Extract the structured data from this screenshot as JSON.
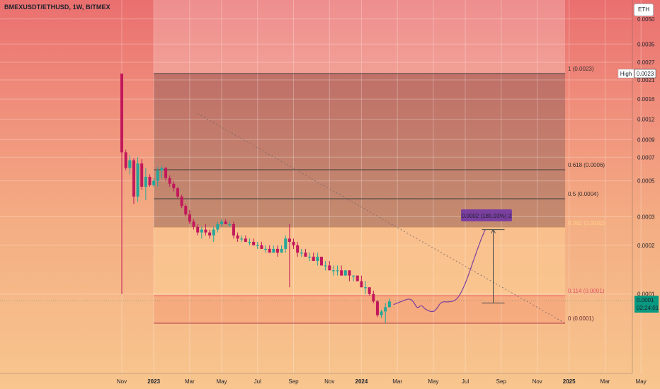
{
  "header": {
    "symbol_title": "BMEXUSDT/ETHUSD, 1W, BITMEX",
    "currency_button": "ETH"
  },
  "colors": {
    "candle_up": "#26a69a",
    "candle_down": "#c2185b",
    "fib_line": "#3d3d3d",
    "fib_zone_upper": "#6b4a4a",
    "fib_zone_lower": "#ffd59a",
    "projection_stroke": "#7b3fa0",
    "measure_label_bg": "#7b3fa0",
    "price_badge_bg": "#089981"
  },
  "chart_data": {
    "type": "candlestick",
    "symbol": "BMEXUSDT/ETHUSD",
    "interval": "1W",
    "exchange": "BITMEX",
    "x_axis": {
      "ticks": [
        "Nov",
        "2023",
        "Mar",
        "May",
        "Jul",
        "Sep",
        "Nov",
        "2024",
        "Mar",
        "May",
        "Jul",
        "Sep",
        "Nov",
        "2025",
        "Mar",
        "May"
      ],
      "bold_ticks": [
        "2023",
        "2024",
        "2025"
      ],
      "range": [
        "2022-10-24",
        "2025-06-09"
      ]
    },
    "y_axis": {
      "scale": "log",
      "ticks": [
        "0.0050",
        "0.0035",
        "0.0027",
        "0.0021",
        "0.0016",
        "0.0012",
        "0.0009",
        "0.0007",
        "0.0005",
        "0.0003",
        "0.0002",
        "0.0001"
      ],
      "position": "right"
    },
    "high_marker": {
      "label": "High",
      "value": "0.0023"
    },
    "current_price": {
      "value": "0.0001",
      "countdown": "02:24:01"
    },
    "candles": [
      {
        "date": "2022-11-07",
        "open": 0.0023,
        "high": 0.0023,
        "low": 0.0001,
        "close": 0.00075
      },
      {
        "date": "2022-11-14",
        "open": 0.00075,
        "high": 0.00078,
        "low": 0.00058,
        "close": 0.0006
      },
      {
        "date": "2022-11-21",
        "open": 0.0006,
        "high": 0.00072,
        "low": 0.00055,
        "close": 0.00067
      },
      {
        "date": "2022-11-28",
        "open": 0.00067,
        "high": 0.00069,
        "low": 0.00036,
        "close": 0.0004
      },
      {
        "date": "2022-12-05",
        "open": 0.0004,
        "high": 0.0007,
        "low": 0.00037,
        "close": 0.00064
      },
      {
        "date": "2022-12-12",
        "open": 0.00064,
        "high": 0.00068,
        "low": 0.00044,
        "close": 0.00046
      },
      {
        "date": "2022-12-19",
        "open": 0.00046,
        "high": 0.0006,
        "low": 0.00038,
        "close": 0.00053
      },
      {
        "date": "2022-12-26",
        "open": 0.00053,
        "high": 0.00055,
        "low": 0.00046,
        "close": 0.00047
      },
      {
        "date": "2023-01-02",
        "open": 0.00047,
        "high": 0.00052,
        "low": 0.00046,
        "close": 0.0005
      },
      {
        "date": "2023-01-09",
        "open": 0.0005,
        "high": 0.00061,
        "low": 0.00046,
        "close": 0.00058
      },
      {
        "date": "2023-01-16",
        "open": 0.00058,
        "high": 0.00062,
        "low": 0.00052,
        "close": 0.0006
      },
      {
        "date": "2023-01-23",
        "open": 0.0006,
        "high": 0.00061,
        "low": 0.0005,
        "close": 0.00052
      },
      {
        "date": "2023-01-30",
        "open": 0.00052,
        "high": 0.00054,
        "low": 0.00046,
        "close": 0.00048
      },
      {
        "date": "2023-02-06",
        "open": 0.00048,
        "high": 0.0005,
        "low": 0.00043,
        "close": 0.00045
      },
      {
        "date": "2023-02-13",
        "open": 0.00045,
        "high": 0.00046,
        "low": 0.00039,
        "close": 0.0004
      },
      {
        "date": "2023-02-20",
        "open": 0.0004,
        "high": 0.00041,
        "low": 0.00034,
        "close": 0.00035
      },
      {
        "date": "2023-02-27",
        "open": 0.00035,
        "high": 0.00036,
        "low": 0.0003,
        "close": 0.00031
      },
      {
        "date": "2023-03-06",
        "open": 0.00031,
        "high": 0.00033,
        "low": 0.00027,
        "close": 0.00028
      },
      {
        "date": "2023-03-13",
        "open": 0.00028,
        "high": 0.00029,
        "low": 0.00025,
        "close": 0.00026
      },
      {
        "date": "2023-03-20",
        "open": 0.00026,
        "high": 0.00027,
        "low": 0.00023,
        "close": 0.00024
      },
      {
        "date": "2023-03-27",
        "open": 0.00024,
        "high": 0.00026,
        "low": 0.00022,
        "close": 0.00025
      },
      {
        "date": "2023-04-03",
        "open": 0.00025,
        "high": 0.00027,
        "low": 0.00023,
        "close": 0.00024
      },
      {
        "date": "2023-04-10",
        "open": 0.00024,
        "high": 0.00025,
        "low": 0.00022,
        "close": 0.00023
      },
      {
        "date": "2023-04-17",
        "open": 0.00023,
        "high": 0.00026,
        "low": 0.00021,
        "close": 0.00025
      },
      {
        "date": "2023-04-24",
        "open": 0.00025,
        "high": 0.00028,
        "low": 0.00024,
        "close": 0.00027
      },
      {
        "date": "2023-05-01",
        "open": 0.00027,
        "high": 0.00029,
        "low": 0.00026,
        "close": 0.00028
      },
      {
        "date": "2023-05-08",
        "open": 0.00028,
        "high": 0.00029,
        "low": 0.00027,
        "close": 0.00027
      },
      {
        "date": "2023-05-15",
        "open": 0.00027,
        "high": 0.00028,
        "low": 0.00026,
        "close": 0.00027
      },
      {
        "date": "2023-05-22",
        "open": 0.00027,
        "high": 0.00028,
        "low": 0.00022,
        "close": 0.00023
      },
      {
        "date": "2023-05-29",
        "open": 0.00023,
        "high": 0.00024,
        "low": 0.00021,
        "close": 0.00022
      },
      {
        "date": "2023-06-05",
        "open": 0.00022,
        "high": 0.00023,
        "low": 0.00021,
        "close": 0.00022
      },
      {
        "date": "2023-06-12",
        "open": 0.00022,
        "high": 0.00023,
        "low": 0.00021,
        "close": 0.00021
      },
      {
        "date": "2023-06-19",
        "open": 0.00021,
        "high": 0.00022,
        "low": 0.0002,
        "close": 0.00021
      },
      {
        "date": "2023-06-26",
        "open": 0.00021,
        "high": 0.00022,
        "low": 0.0002,
        "close": 0.0002
      },
      {
        "date": "2023-07-03",
        "open": 0.0002,
        "high": 0.00021,
        "low": 0.00019,
        "close": 0.0002
      },
      {
        "date": "2023-07-10",
        "open": 0.0002,
        "high": 0.00021,
        "low": 0.00019,
        "close": 0.00019
      },
      {
        "date": "2023-07-17",
        "open": 0.00019,
        "high": 0.0002,
        "low": 0.00018,
        "close": 0.00019
      },
      {
        "date": "2023-07-24",
        "open": 0.00019,
        "high": 0.0002,
        "low": 0.00018,
        "close": 0.00018
      },
      {
        "date": "2023-07-31",
        "open": 0.00018,
        "high": 0.0002,
        "low": 0.00018,
        "close": 0.00019
      },
      {
        "date": "2023-08-07",
        "open": 0.00019,
        "high": 0.0002,
        "low": 0.00017,
        "close": 0.00018
      },
      {
        "date": "2023-08-14",
        "open": 0.00018,
        "high": 0.0002,
        "low": 0.00018,
        "close": 0.00019
      },
      {
        "date": "2023-08-21",
        "open": 0.00019,
        "high": 0.00023,
        "low": 0.00018,
        "close": 0.00022
      },
      {
        "date": "2023-08-28",
        "open": 0.00022,
        "high": 0.00027,
        "low": 0.00011,
        "close": 0.00021
      },
      {
        "date": "2023-09-04",
        "open": 0.00021,
        "high": 0.00022,
        "low": 0.00019,
        "close": 0.0002
      },
      {
        "date": "2023-09-11",
        "open": 0.0002,
        "high": 0.00021,
        "low": 0.00017,
        "close": 0.00018
      },
      {
        "date": "2023-09-18",
        "open": 0.00018,
        "high": 0.00019,
        "low": 0.00017,
        "close": 0.00018
      },
      {
        "date": "2023-09-25",
        "open": 0.00018,
        "high": 0.00019,
        "low": 0.00017,
        "close": 0.00017
      },
      {
        "date": "2023-10-02",
        "open": 0.00017,
        "high": 0.00018,
        "low": 0.00016,
        "close": 0.00017
      },
      {
        "date": "2023-10-09",
        "open": 0.00017,
        "high": 0.00018,
        "low": 0.00016,
        "close": 0.00016
      },
      {
        "date": "2023-10-16",
        "open": 0.00016,
        "high": 0.00018,
        "low": 0.00015,
        "close": 0.00017
      },
      {
        "date": "2023-10-23",
        "open": 0.00017,
        "high": 0.00017,
        "low": 0.00015,
        "close": 0.00015
      },
      {
        "date": "2023-10-30",
        "open": 0.00015,
        "high": 0.00016,
        "low": 0.00014,
        "close": 0.00015
      },
      {
        "date": "2023-11-06",
        "open": 0.00015,
        "high": 0.00016,
        "low": 0.00014,
        "close": 0.00014
      },
      {
        "date": "2023-11-13",
        "open": 0.00014,
        "high": 0.00015,
        "low": 0.00013,
        "close": 0.00014
      },
      {
        "date": "2023-11-20",
        "open": 0.00014,
        "high": 0.00015,
        "low": 0.00013,
        "close": 0.00014
      },
      {
        "date": "2023-11-27",
        "open": 0.00014,
        "high": 0.00015,
        "low": 0.00013,
        "close": 0.00013
      },
      {
        "date": "2023-12-04",
        "open": 0.00013,
        "high": 0.00014,
        "low": 0.00013,
        "close": 0.00014
      },
      {
        "date": "2023-12-11",
        "open": 0.00014,
        "high": 0.00014,
        "low": 0.00012,
        "close": 0.00013
      },
      {
        "date": "2023-12-18",
        "open": 0.00013,
        "high": 0.00013,
        "low": 0.00012,
        "close": 0.00013
      },
      {
        "date": "2023-12-25",
        "open": 0.00013,
        "high": 0.00013,
        "low": 0.00012,
        "close": 0.00012
      },
      {
        "date": "2024-01-01",
        "open": 0.00012,
        "high": 0.00013,
        "low": 0.00011,
        "close": 0.00011
      },
      {
        "date": "2024-01-08",
        "open": 0.00011,
        "high": 0.00012,
        "low": 0.0001,
        "close": 0.00011
      },
      {
        "date": "2024-01-15",
        "open": 0.00011,
        "high": 0.00011,
        "low": 9.8e-05,
        "close": 0.0001
      },
      {
        "date": "2024-01-22",
        "open": 0.0001,
        "high": 0.000105,
        "low": 8.8e-05,
        "close": 9e-05
      },
      {
        "date": "2024-01-29",
        "open": 9e-05,
        "high": 9.2e-05,
        "low": 7.2e-05,
        "close": 7.4e-05
      },
      {
        "date": "2024-02-05",
        "open": 7.4e-05,
        "high": 8e-05,
        "low": 7.1e-05,
        "close": 7.8e-05
      },
      {
        "date": "2024-02-12",
        "open": 7.8e-05,
        "high": 8.8e-05,
        "low": 6.6e-05,
        "close": 8.3e-05
      },
      {
        "date": "2024-02-19",
        "open": 8.3e-05,
        "high": 9.4e-05,
        "low": 8.2e-05,
        "close": 9e-05
      }
    ],
    "fibonacci_retracement": {
      "levels": [
        {
          "ratio": "1",
          "value": "0.0023"
        },
        {
          "ratio": "0.618",
          "value": "0.0006"
        },
        {
          "ratio": "0.5",
          "value": "0.0004"
        },
        {
          "ratio": "0.382",
          "value": "0.0002"
        },
        {
          "ratio": "0.114",
          "value": "0.0001"
        },
        {
          "ratio": "0",
          "value": "0.0001"
        }
      ],
      "start": "2023-01-02",
      "end": "2024-12-23"
    },
    "trend_line": {
      "start": {
        "date": "2023-03-20",
        "value": 0.0013
      },
      "end": {
        "date": "2024-12-23",
        "value": 6.6e-05
      },
      "style": "dotted"
    },
    "measure": {
      "label": "0.0002 (185.93%) 2",
      "from": {
        "date": "2024-08-19",
        "value": 8.8e-05
      },
      "to": {
        "date": "2024-08-19",
        "value": 0.00025
      }
    },
    "projection_path": [
      {
        "date": "2024-02-26",
        "value": 8.6e-05
      },
      {
        "date": "2024-03-11",
        "value": 9e-05
      },
      {
        "date": "2024-03-25",
        "value": 9.4e-05
      },
      {
        "date": "2024-04-01",
        "value": 9e-05
      },
      {
        "date": "2024-04-08",
        "value": 8.1e-05
      },
      {
        "date": "2024-04-15",
        "value": 8.6e-05
      },
      {
        "date": "2024-04-22",
        "value": 8e-05
      },
      {
        "date": "2024-05-06",
        "value": 7.7e-05
      },
      {
        "date": "2024-05-13",
        "value": 8.2e-05
      },
      {
        "date": "2024-05-20",
        "value": 9e-05
      },
      {
        "date": "2024-06-03",
        "value": 8.9e-05
      },
      {
        "date": "2024-06-17",
        "value": 9.2e-05
      },
      {
        "date": "2024-07-01",
        "value": 0.000115
      },
      {
        "date": "2024-07-15",
        "value": 0.00016
      },
      {
        "date": "2024-07-29",
        "value": 0.00022
      },
      {
        "date": "2024-08-05",
        "value": 0.00025
      }
    ],
    "grid": true
  }
}
